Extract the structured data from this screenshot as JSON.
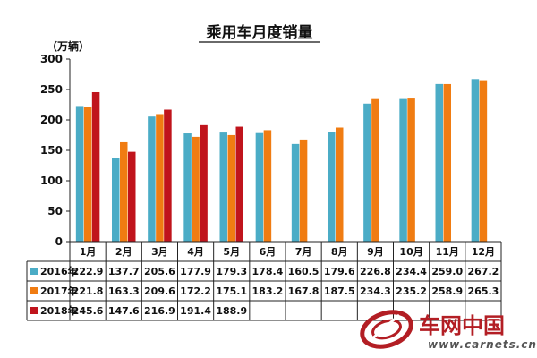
{
  "chart_data": {
    "type": "bar",
    "title": "乘用车月度销量",
    "ylabel": "（万辆）",
    "ylim": [
      0,
      300
    ],
    "yticks": [
      0,
      50,
      100,
      150,
      200,
      250,
      300
    ],
    "grid": false,
    "legend": "table-left",
    "categories": [
      "1月",
      "2月",
      "3月",
      "4月",
      "5月",
      "6月",
      "7月",
      "8月",
      "9月",
      "10月",
      "11月",
      "12月"
    ],
    "series": [
      {
        "name": "2016年",
        "color": "#4bacc6",
        "values": [
          222.9,
          137.7,
          205.6,
          177.9,
          179.3,
          178.4,
          160.5,
          179.6,
          226.8,
          234.4,
          259.0,
          267.2
        ],
        "labels": [
          "222.9",
          "137.7",
          "205.6",
          "177.9",
          "179.3",
          "178.4",
          "160.5",
          "179.6",
          "226.8",
          "234.4",
          "259.0",
          "267.2"
        ]
      },
      {
        "name": "2017年",
        "color": "#f07c12",
        "values": [
          221.8,
          163.3,
          209.6,
          172.2,
          175.1,
          183.2,
          167.8,
          187.5,
          234.3,
          235.2,
          258.9,
          265.3
        ],
        "labels": [
          "221.8",
          "163.3",
          "209.6",
          "172.2",
          "175.1",
          "183.2",
          "167.8",
          "187.5",
          "234.3",
          "235.2",
          "258.9",
          "265.3"
        ]
      },
      {
        "name": "2018年",
        "color": "#c0141c",
        "values": [
          245.6,
          147.6,
          216.9,
          191.4,
          188.9,
          null,
          null,
          null,
          null,
          null,
          null,
          null
        ],
        "labels": [
          "245.6",
          "147.6",
          "216.9",
          "191.4",
          "188.9",
          "",
          "",
          "",
          "",
          "",
          "",
          ""
        ]
      }
    ]
  },
  "watermark": {
    "text": "车网中国",
    "url": "www.carnets.cn"
  }
}
